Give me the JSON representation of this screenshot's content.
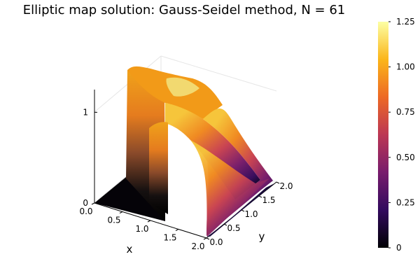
{
  "chart_data": {
    "type": "surface",
    "title": "Elliptic map solution: Gauss-Seidel method, N = 61",
    "xlabel": "x",
    "ylabel": "y",
    "zlabel": "",
    "x_range": [
      0,
      2
    ],
    "y_range": [
      0,
      2
    ],
    "z_range": [
      0,
      1.25
    ],
    "x_ticks": [
      "0.0",
      "0.5",
      "1.0",
      "1.5",
      "2.0"
    ],
    "y_ticks": [
      "0.0",
      "0.5",
      "1.0",
      "1.5",
      "2.0"
    ],
    "z_ticks": [
      "0",
      "1"
    ],
    "colorbar": {
      "min": 0,
      "max": 1.25,
      "ticks": [
        "0",
        "0.25",
        "0.50",
        "0.75",
        "1.00",
        "1.25"
      ],
      "colormap": "inferno",
      "stops": [
        "#000004",
        "#320a5e",
        "#781c6d",
        "#bc3754",
        "#ed6925",
        "#fbb61a",
        "#fcffa4"
      ]
    },
    "surface_description": "Arch shape: u = 0 for x > 1 region is low plateau, raised wall near x = 0.5 to 1.0 with maximum about 1.25 near y = 1, decaying to 0 at y = 2",
    "grid": true,
    "legend": "colorbar-right"
  }
}
